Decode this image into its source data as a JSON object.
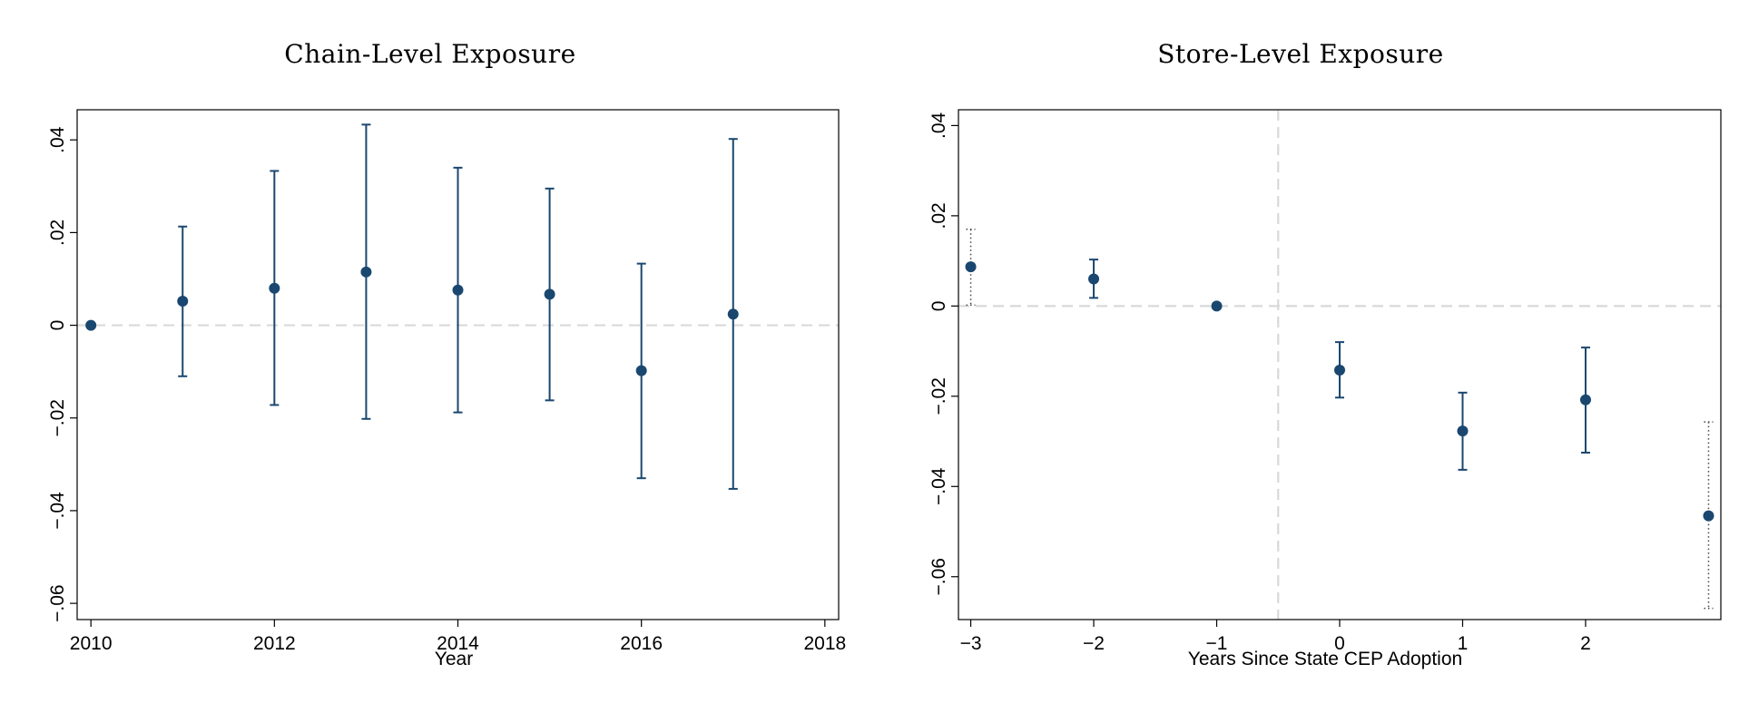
{
  "chart_data": [
    {
      "type": "scatter",
      "title": "Chain-Level Exposure",
      "xlabel": "Year",
      "ylabel": "",
      "xlim": [
        2009.85,
        2018.15
      ],
      "ylim": [
        -0.0635,
        0.0465
      ],
      "xticks": [
        2010,
        2012,
        2014,
        2016,
        2018
      ],
      "xtick_labels": [
        "2010",
        "2012",
        "2014",
        "2016",
        "2018"
      ],
      "yticks": [
        0.04,
        0.02,
        0,
        -0.02,
        -0.04,
        -0.06
      ],
      "ytick_labels": [
        ".04",
        ".02",
        "0",
        "−.02",
        "−.04",
        "−.06"
      ],
      "reference_lines": {
        "horizontal": 0
      },
      "grid": false,
      "series": [
        {
          "color": "#1a476f",
          "points": [
            {
              "x": 2010,
              "y": 0.0,
              "ci_low": null,
              "ci_high": null,
              "ci_style": "none"
            },
            {
              "x": 2011,
              "y": 0.0052,
              "ci_low": -0.011,
              "ci_high": 0.0213,
              "ci_style": "solid"
            },
            {
              "x": 2012,
              "y": 0.008,
              "ci_low": -0.0172,
              "ci_high": 0.0333,
              "ci_style": "solid"
            },
            {
              "x": 2013,
              "y": 0.0115,
              "ci_low": -0.0202,
              "ci_high": 0.0433,
              "ci_style": "solid"
            },
            {
              "x": 2014,
              "y": 0.0076,
              "ci_low": -0.0188,
              "ci_high": 0.034,
              "ci_style": "solid"
            },
            {
              "x": 2015,
              "y": 0.0067,
              "ci_low": -0.0162,
              "ci_high": 0.0295,
              "ci_style": "solid"
            },
            {
              "x": 2016,
              "y": -0.0098,
              "ci_low": -0.033,
              "ci_high": 0.0133,
              "ci_style": "solid"
            },
            {
              "x": 2017,
              "y": 0.0024,
              "ci_low": -0.0353,
              "ci_high": 0.0402,
              "ci_style": "solid"
            }
          ]
        }
      ]
    },
    {
      "type": "scatter",
      "title": "Store-Level Exposure",
      "xlabel": "Years Since State CEP Adoption",
      "ylabel": "",
      "xlim": [
        -3.1,
        3.1
      ],
      "ylim": [
        -0.0695,
        0.0435
      ],
      "xticks": [
        -3,
        -2,
        -1,
        0,
        1,
        2
      ],
      "xtick_labels": [
        "−3",
        "−2",
        "−1",
        "0",
        "1",
        "2"
      ],
      "yticks": [
        0.04,
        0.02,
        0,
        -0.02,
        -0.04,
        -0.06
      ],
      "ytick_labels": [
        ".04",
        ".02",
        "0",
        "−.02",
        "−.04",
        "−.06"
      ],
      "reference_lines": {
        "horizontal": 0,
        "vertical": -0.5
      },
      "grid": false,
      "series": [
        {
          "color": "#1a476f",
          "points": [
            {
              "x": -3,
              "y": 0.0087,
              "ci_low": 0.0002,
              "ci_high": 0.017,
              "ci_style": "dotted"
            },
            {
              "x": -2,
              "y": 0.006,
              "ci_low": 0.0018,
              "ci_high": 0.0103,
              "ci_style": "solid"
            },
            {
              "x": -1,
              "y": 0.0,
              "ci_low": null,
              "ci_high": null,
              "ci_style": "none"
            },
            {
              "x": 0,
              "y": -0.0142,
              "ci_low": -0.0203,
              "ci_high": -0.008,
              "ci_style": "solid"
            },
            {
              "x": 1,
              "y": -0.0277,
              "ci_low": -0.0363,
              "ci_high": -0.0192,
              "ci_style": "solid"
            },
            {
              "x": 2,
              "y": -0.0208,
              "ci_low": -0.0325,
              "ci_high": -0.0092,
              "ci_style": "solid"
            },
            {
              "x": 3,
              "y": -0.0465,
              "ci_low": -0.067,
              "ci_high": -0.0257,
              "ci_style": "dotted"
            }
          ]
        }
      ]
    }
  ]
}
